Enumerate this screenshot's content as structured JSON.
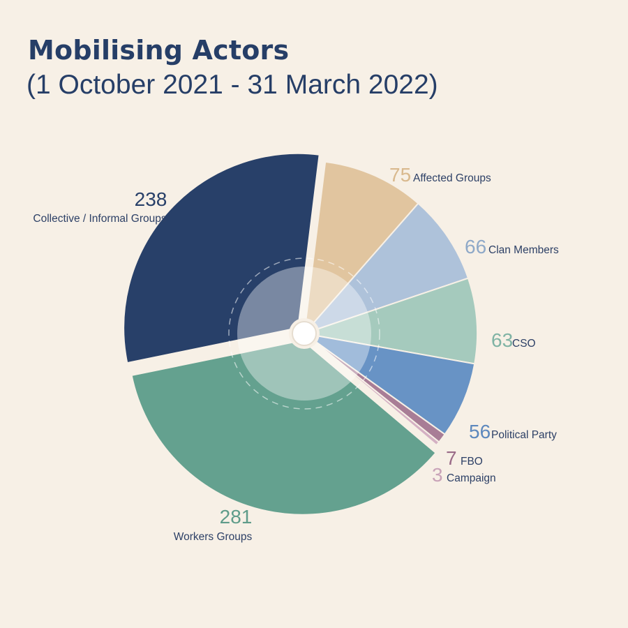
{
  "title": "Mobilising Actors",
  "subtitle": "(1 October 2021 - 31 March 2022)",
  "chart_data": {
    "type": "pie",
    "title": "Mobilising Actors",
    "subtitle": "(1 October 2021 - 31 March 2022)",
    "slices": [
      {
        "label": "Affected Groups",
        "value": 75,
        "color": "#e1c59f",
        "value_color": "#d9b98e"
      },
      {
        "label": "Clan Members",
        "value": 66,
        "color": "#aec2da",
        "value_color": "#8fa9c8"
      },
      {
        "label": "CSO",
        "value": 63,
        "color": "#a5cabd",
        "value_color": "#7fb3a4"
      },
      {
        "label": "Political Party",
        "value": 56,
        "color": "#6893c5",
        "value_color": "#5d88bd"
      },
      {
        "label": "FBO",
        "value": 7,
        "color": "#a87d96",
        "value_color": "#9a6b88"
      },
      {
        "label": "Campaign",
        "value": 3,
        "color": "#d4b0c3",
        "value_color": "#c9a3b8"
      },
      {
        "label": "Workers Groups",
        "value": 281,
        "color": "#64a18f",
        "value_color": "#5f9c8a"
      },
      {
        "label": "Collective / Informal Groups",
        "value": 238,
        "color": "#284069",
        "value_color": "#284069"
      }
    ],
    "start": "top, clockwise",
    "legend": "none (direct labels)"
  }
}
